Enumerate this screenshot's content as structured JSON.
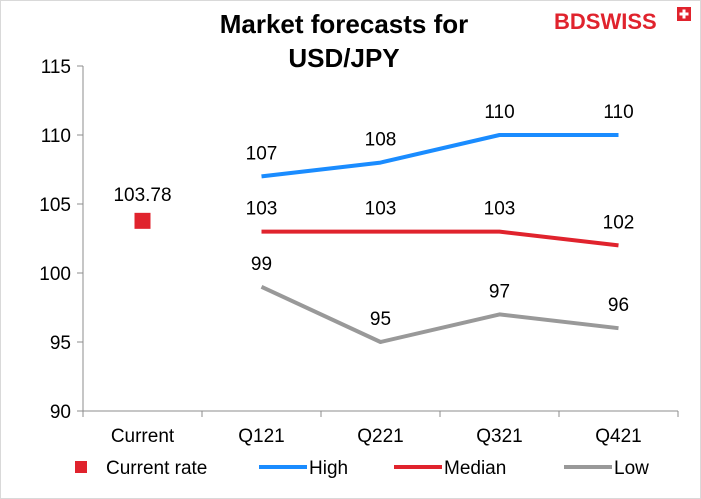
{
  "brand": {
    "logo_text": "BDSWISS",
    "color": "#e0232d"
  },
  "chart_data": {
    "type": "line",
    "title": "Market forecasts for USD/JPY",
    "title_lines": [
      "Market forecasts for",
      "USD/JPY"
    ],
    "categories": [
      "Current",
      "Q121",
      "Q221",
      "Q321",
      "Q421"
    ],
    "ylim": [
      90,
      115
    ],
    "yticks": [
      90,
      95,
      100,
      105,
      110,
      115
    ],
    "grid": false,
    "legend_position": "bottom",
    "series": [
      {
        "name": "Current rate",
        "marker": "square",
        "color": "#e0232d",
        "values": [
          103.78,
          null,
          null,
          null,
          null
        ],
        "labels": [
          "103.78",
          "",
          "",
          "",
          ""
        ]
      },
      {
        "name": "High",
        "marker": "line",
        "color": "#1a8cff",
        "values": [
          null,
          107,
          108,
          110,
          110
        ],
        "labels": [
          "",
          "107",
          "108",
          "110",
          "110"
        ]
      },
      {
        "name": "Median",
        "marker": "line",
        "color": "#e0232d",
        "values": [
          null,
          103,
          103,
          103,
          102
        ],
        "labels": [
          "",
          "103",
          "103",
          "103",
          "102"
        ]
      },
      {
        "name": "Low",
        "marker": "line",
        "color": "#999999",
        "values": [
          null,
          99,
          95,
          97,
          96
        ],
        "labels": [
          "",
          "99",
          "95",
          "97",
          "96"
        ]
      }
    ]
  }
}
